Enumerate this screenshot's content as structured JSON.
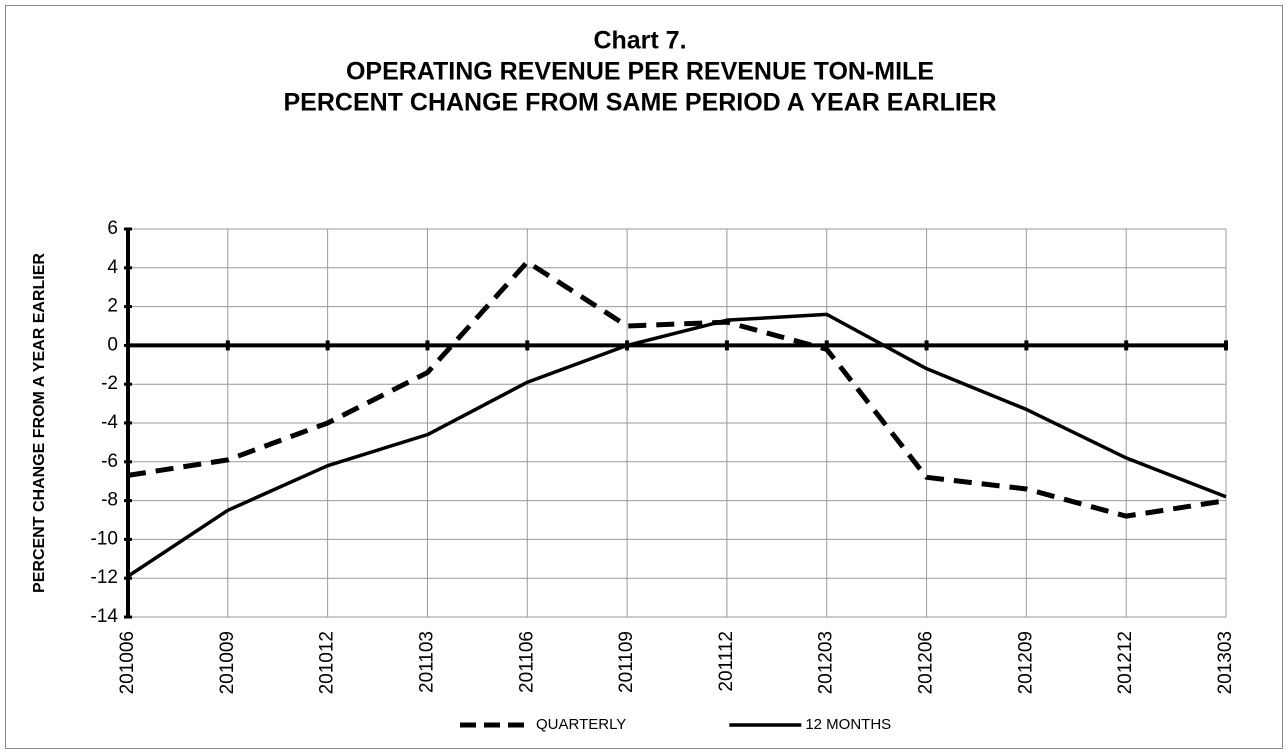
{
  "chart_data": {
    "type": "line",
    "title": [
      "Chart 7.",
      "OPERATING REVENUE PER REVENUE TON-MILE",
      "PERCENT CHANGE FROM SAME PERIOD A YEAR EARLIER"
    ],
    "y_label": "PERCENT CHANGE FROM A YEAR EARLIER",
    "categories": [
      "201006",
      "201009",
      "201012",
      "201103",
      "201106",
      "201109",
      "201112",
      "201203",
      "201206",
      "201209",
      "201212",
      "201303"
    ],
    "series": [
      {
        "name": "QUARTERLY",
        "color": "#000000",
        "line_style": "dashed",
        "values": [
          -6.7,
          -5.9,
          -4.0,
          -1.4,
          4.3,
          1.0,
          1.2,
          -0.2,
          -6.8,
          -7.4,
          -8.8,
          -8.0
        ]
      },
      {
        "name": "12 MONTHS",
        "color": "#000000",
        "line_style": "solid",
        "values": [
          -11.9,
          -8.5,
          -6.2,
          -4.6,
          -1.9,
          0.0,
          1.3,
          1.6,
          -1.2,
          -3.3,
          -5.8,
          -7.8
        ]
      }
    ],
    "ylim": [
      -14,
      6
    ],
    "yticks": [
      -14,
      -12,
      -10,
      -8,
      -6,
      -4,
      -2,
      0,
      2,
      4,
      6
    ],
    "grid": true,
    "legend": "bottom"
  }
}
